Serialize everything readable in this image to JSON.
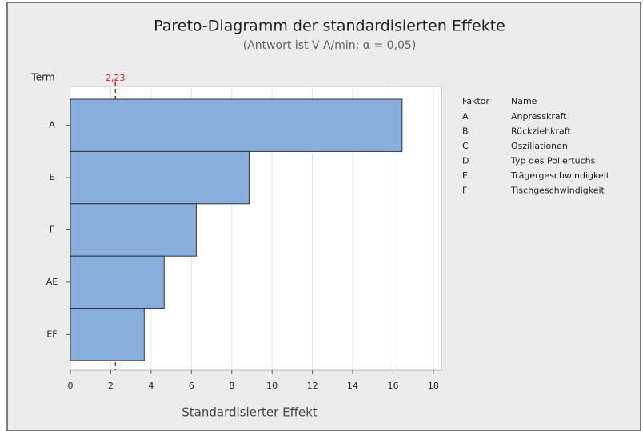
{
  "chart_data": {
    "type": "bar",
    "orientation": "horizontal",
    "title": "Pareto-Diagramm der standardisierten Effekte",
    "subtitle": "(Antwort ist V A/min; α = 0,05)",
    "ylabel": "Term",
    "xlabel": "Standardisierter Effekt",
    "categories": [
      "A",
      "E",
      "F",
      "AE",
      "EF"
    ],
    "values": [
      16.45,
      8.86,
      6.24,
      4.65,
      3.66
    ],
    "color": "#87aedc",
    "xlim": [
      0,
      18.4
    ],
    "xticks": [
      0,
      2,
      4,
      6,
      8,
      10,
      12,
      14,
      16,
      18
    ],
    "grid": true,
    "reference_line": {
      "value": 2.23,
      "label": "2,23",
      "color": "#c0282d"
    },
    "legend_table": {
      "headers": [
        "Faktor",
        "Name"
      ],
      "rows": [
        [
          "A",
          "Anpresskraft"
        ],
        [
          "B",
          "Rückziehkraft"
        ],
        [
          "C",
          "Oszillationen"
        ],
        [
          "D",
          "Typ des Poliertuchs"
        ],
        [
          "E",
          "Trägergeschwindigkeit"
        ],
        [
          "F",
          "Tischgeschwindigkeit"
        ]
      ]
    }
  }
}
